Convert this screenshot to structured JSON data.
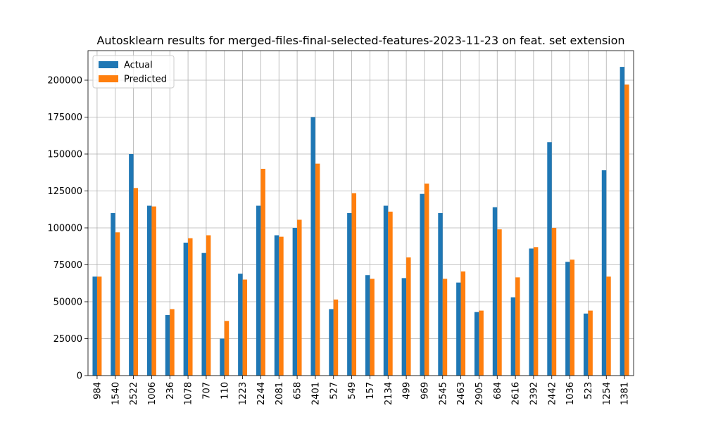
{
  "chart_data": {
    "type": "bar",
    "title": "Autosklearn results for merged-files-final-selected-features-2023-11-23 on feat. set extension",
    "xlabel": "",
    "ylabel": "",
    "ylim": [
      0,
      220000
    ],
    "yticks": [
      0,
      25000,
      50000,
      75000,
      100000,
      125000,
      150000,
      175000,
      200000
    ],
    "grid": true,
    "legend_position": "top-left",
    "categories": [
      "984",
      "1540",
      "2522",
      "1006",
      "236",
      "1078",
      "707",
      "110",
      "1223",
      "2244",
      "2081",
      "658",
      "2401",
      "527",
      "549",
      "157",
      "2134",
      "499",
      "969",
      "2545",
      "2463",
      "2905",
      "684",
      "2616",
      "2392",
      "2442",
      "1036",
      "523",
      "1254",
      "1381"
    ],
    "series": [
      {
        "name": "Actual",
        "color": "#1f77b4",
        "values": [
          67000,
          110000,
          150000,
          115000,
          41000,
          90000,
          83000,
          25000,
          69000,
          115000,
          95000,
          100000,
          175000,
          45000,
          110000,
          68000,
          115000,
          66000,
          123000,
          110000,
          63000,
          43000,
          114000,
          53000,
          86000,
          158000,
          77000,
          42000,
          139000,
          209000
        ]
      },
      {
        "name": "Predicted",
        "color": "#ff7f0e",
        "values": [
          67000,
          97000,
          127000,
          114500,
          45000,
          93000,
          95000,
          37000,
          65000,
          140000,
          94000,
          105500,
          143500,
          51500,
          123500,
          65500,
          111000,
          80000,
          130000,
          65500,
          70500,
          44000,
          99000,
          66500,
          87000,
          100000,
          78500,
          44000,
          67000,
          197000
        ]
      }
    ]
  }
}
